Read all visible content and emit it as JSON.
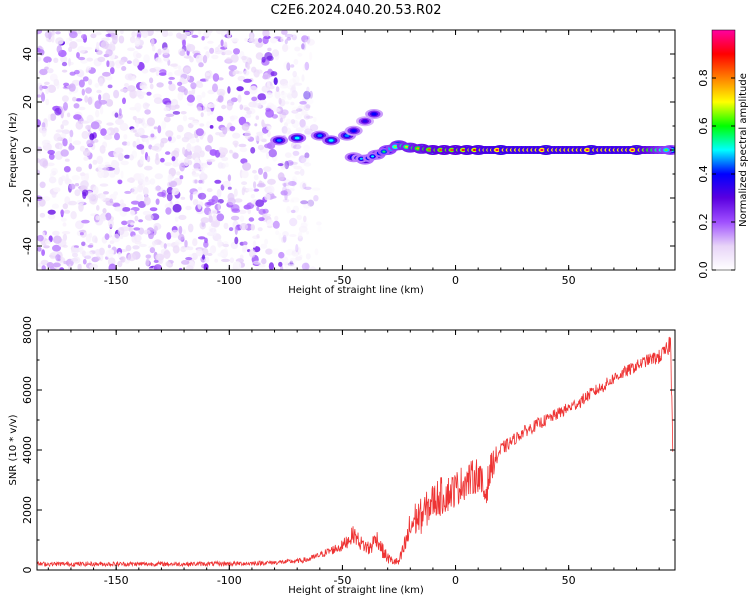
{
  "title": "C2E6.2024.040.20.53.R02",
  "chart_data": [
    {
      "type": "heatmap",
      "xlabel": "Height of straight line (km)",
      "ylabel": "Frequency (Hz)",
      "xlim": [
        -185,
        97
      ],
      "ylim": [
        -50,
        50
      ],
      "xticks": [
        -150,
        -100,
        -50,
        0,
        50
      ],
      "yticks": [
        -40,
        -20,
        0,
        20,
        40
      ],
      "colorbar": {
        "label": "Normalized spectral amplitude",
        "range": [
          0,
          1
        ],
        "ticks": [
          0.0,
          0.2,
          0.4,
          0.6,
          0.8
        ],
        "colormap": [
          "#ffffff",
          "#e8d4f8",
          "#a050ff",
          "#5a00e0",
          "#0000ff",
          "#00ffff",
          "#00ff00",
          "#ffff00",
          "#ff8000",
          "#ff0000",
          "#ff00a0"
        ]
      },
      "noise_region": {
        "x": [
          -185,
          -63
        ],
        "y": [
          -50,
          50
        ],
        "amplitude": [
          0.02,
          0.2
        ]
      },
      "signal_track": [
        {
          "x": -78,
          "y": 4,
          "amplitude": 0.45
        },
        {
          "x": -70,
          "y": 5,
          "amplitude": 0.5
        },
        {
          "x": -60,
          "y": 6,
          "amplitude": 0.45
        },
        {
          "x": -55,
          "y": 4,
          "amplitude": 0.5
        },
        {
          "x": -48,
          "y": 6,
          "amplitude": 0.45
        },
        {
          "x": -45,
          "y": 8,
          "amplitude": 0.4
        },
        {
          "x": -40,
          "y": 12,
          "amplitude": 0.35
        },
        {
          "x": -36,
          "y": 15,
          "amplitude": 0.4
        },
        {
          "x": -45,
          "y": -3,
          "amplitude": 0.45
        },
        {
          "x": -40,
          "y": -4,
          "amplitude": 0.5
        },
        {
          "x": -35,
          "y": -2,
          "amplitude": 0.5
        },
        {
          "x": -30,
          "y": 0,
          "amplitude": 0.6
        },
        {
          "x": -25,
          "y": 2,
          "amplitude": 0.7
        },
        {
          "x": -20,
          "y": 1,
          "amplitude": 0.75
        },
        {
          "x": -15,
          "y": 0.5,
          "amplitude": 0.8
        },
        {
          "x": -10,
          "y": 0,
          "amplitude": 0.85
        },
        {
          "x": -5,
          "y": 0,
          "amplitude": 0.85
        },
        {
          "x": 0,
          "y": 0,
          "amplitude": 0.85
        },
        {
          "x": 5,
          "y": 0,
          "amplitude": 0.9
        },
        {
          "x": 10,
          "y": 0,
          "amplitude": 0.9
        },
        {
          "x": 20,
          "y": 0,
          "amplitude": 0.95
        },
        {
          "x": 40,
          "y": 0,
          "amplitude": 0.95
        },
        {
          "x": 60,
          "y": 0,
          "amplitude": 0.95
        },
        {
          "x": 80,
          "y": 0,
          "amplitude": 0.95
        },
        {
          "x": 95,
          "y": 0,
          "amplitude": 0.6
        }
      ]
    },
    {
      "type": "line",
      "xlabel": "Height of straight line (km)",
      "ylabel": "SNR (10 * v/v)",
      "xlim": [
        -185,
        97
      ],
      "ylim": [
        0,
        8000
      ],
      "xticks": [
        -150,
        -100,
        -50,
        0,
        50
      ],
      "yticks": [
        0,
        2000,
        4000,
        6000,
        8000
      ],
      "series": [
        {
          "color": "#ee3333",
          "x": [
            -185,
            -160,
            -140,
            -120,
            -100,
            -90,
            -80,
            -75,
            -70,
            -65,
            -60,
            -55,
            -50,
            -45,
            -42,
            -40,
            -38,
            -35,
            -32,
            -30,
            -28,
            -25,
            -22,
            -20,
            -18,
            -15,
            -12,
            -10,
            -8,
            -5,
            -2,
            0,
            3,
            6,
            10,
            13,
            16,
            20,
            25,
            30,
            35,
            40,
            45,
            50,
            55,
            60,
            65,
            70,
            75,
            80,
            85,
            90,
            93,
            95,
            96
          ],
          "y": [
            200,
            200,
            200,
            200,
            210,
            220,
            250,
            270,
            300,
            350,
            500,
            650,
            800,
            1200,
            900,
            800,
            700,
            1100,
            600,
            400,
            300,
            250,
            900,
            1400,
            1700,
            1800,
            2100,
            2300,
            2400,
            2500,
            2600,
            2700,
            2900,
            3000,
            3200,
            2500,
            3500,
            4000,
            4300,
            4600,
            4800,
            5000,
            5200,
            5400,
            5600,
            5900,
            6100,
            6400,
            6600,
            6800,
            7000,
            7100,
            7300,
            7600,
            4700
          ],
          "noise_amplitude": [
            150,
            150,
            150,
            150,
            150,
            150,
            150,
            150,
            150,
            200,
            200,
            300,
            400,
            600,
            500,
            500,
            600,
            600,
            500,
            400,
            300,
            300,
            800,
            1200,
            1200,
            1200,
            1200,
            1200,
            1300,
            1300,
            1200,
            1200,
            1200,
            1200,
            1200,
            1200,
            1000,
            500,
            400,
            400,
            400,
            400,
            400,
            400,
            400,
            400,
            400,
            400,
            400,
            400,
            400,
            500,
            500,
            800,
            1600
          ]
        }
      ]
    }
  ]
}
